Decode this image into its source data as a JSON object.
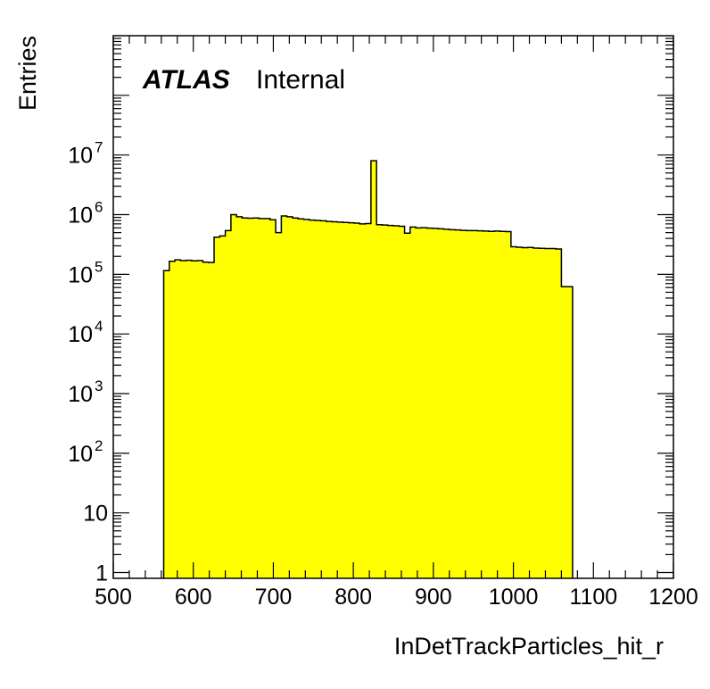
{
  "chart_data": {
    "type": "bar",
    "title": "",
    "label_atlas": "ATLAS",
    "label_status": "Internal",
    "xlabel": "InDetTrackParticles_hit_r",
    "ylabel": "Entries",
    "xlim": [
      500,
      1200
    ],
    "ylim": [
      0.8,
      1000000000
    ],
    "ylog": true,
    "grid": false,
    "fill_color": "#ffff00",
    "line_color": "#000000",
    "x_tick_labels": [
      "500",
      "600",
      "700",
      "800",
      "900",
      "1000",
      "1100",
      "1200"
    ],
    "y_tick_labels": [
      {
        "value": 1,
        "base": "1",
        "exp": ""
      },
      {
        "value": 10,
        "base": "10",
        "exp": ""
      },
      {
        "value": 100,
        "base": "10",
        "exp": "2"
      },
      {
        "value": 1000,
        "base": "10",
        "exp": "3"
      },
      {
        "value": 10000,
        "base": "10",
        "exp": "4"
      },
      {
        "value": 100000,
        "base": "10",
        "exp": "5"
      },
      {
        "value": 1000000,
        "base": "10",
        "exp": "6"
      },
      {
        "value": 10000000,
        "base": "10",
        "exp": "7"
      }
    ],
    "bin_edges": [
      563,
      570,
      577,
      584,
      591,
      598,
      605,
      612,
      619,
      626,
      633,
      640,
      647,
      654,
      661,
      668,
      675,
      682,
      689,
      696,
      703,
      710,
      717,
      724,
      731,
      738,
      745,
      752,
      759,
      766,
      773,
      780,
      787,
      794,
      801,
      808,
      815,
      822,
      829,
      836,
      843,
      850,
      857,
      864,
      871,
      878,
      885,
      892,
      899,
      906,
      913,
      920,
      927,
      934,
      941,
      948,
      955,
      962,
      969,
      976,
      983,
      990,
      997,
      1004,
      1011,
      1018,
      1025,
      1032,
      1039,
      1046,
      1053,
      1060,
      1067,
      1074
    ],
    "values": [
      115000,
      165000,
      175000,
      170000,
      172000,
      168000,
      170000,
      160000,
      158000,
      420000,
      440000,
      540000,
      1000000,
      920000,
      880000,
      870000,
      880000,
      860000,
      860000,
      820000,
      500000,
      950000,
      920000,
      880000,
      850000,
      830000,
      810000,
      800000,
      790000,
      770000,
      760000,
      750000,
      740000,
      730000,
      720000,
      700000,
      710000,
      8000000,
      680000,
      670000,
      660000,
      650000,
      640000,
      490000,
      620000,
      600000,
      605000,
      595000,
      590000,
      580000,
      570000,
      560000,
      555000,
      545000,
      540000,
      540000,
      535000,
      530000,
      525000,
      530000,
      525000,
      520000,
      290000,
      285000,
      280000,
      282000,
      275000,
      273000,
      270000,
      270000,
      265000,
      62000,
      62000
    ]
  }
}
